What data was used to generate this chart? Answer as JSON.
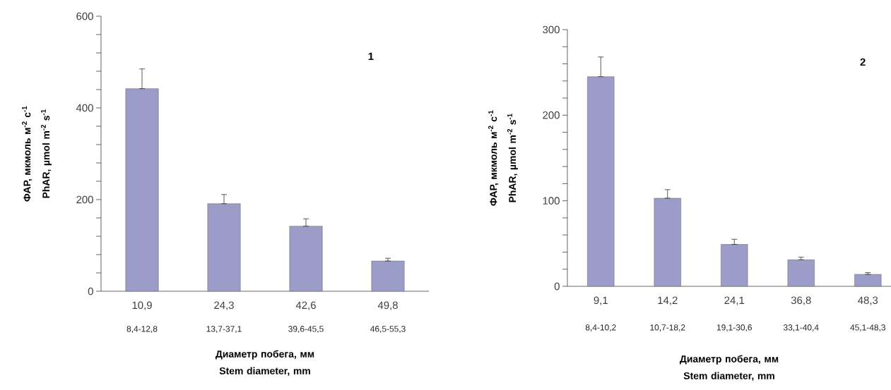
{
  "chart_data": [
    {
      "type": "bar",
      "title": "1",
      "categories": [
        "10,9",
        "24,3",
        "42,6",
        "49,8"
      ],
      "values": [
        442,
        191,
        142,
        66
      ],
      "errors": [
        [
          442,
          485
        ],
        [
          191,
          211
        ],
        [
          142,
          158
        ],
        [
          66,
          72
        ]
      ],
      "color": "#9c9cc8",
      "annotations": [
        "8,4-12,8",
        "13,7-37,1",
        "39,6-45,5",
        "46,5-55,3"
      ],
      "xlabel": "Диаметр побега, мм Stem diameter, mm",
      "ylabel": "ФАР, мкмоль м$^{-2}$ с$^{-1}$ PhAR, µmol m$^{-2}$ s$^{-1}$",
      "ylim": [
        0,
        600
      ],
      "yticks": [
        0,
        {
          "value": 40,
          "label": null
        },
        {
          "value": 80,
          "label": null
        },
        {
          "value": 120,
          "label": null
        },
        {
          "value": 160,
          "label": null
        },
        200,
        {
          "value": 240,
          "label": null
        },
        {
          "value": 280,
          "label": null
        },
        {
          "value": 320,
          "label": null
        },
        {
          "value": 360,
          "label": null
        },
        400,
        {
          "value": 440,
          "label": null
        },
        {
          "value": 480,
          "label": null
        },
        {
          "value": 520,
          "label": null
        },
        {
          "value": 560,
          "label": null
        },
        600
      ]
    },
    {
      "type": "bar",
      "title": "2",
      "categories": [
        "9,1",
        "14,2",
        "24,1",
        "36,8",
        "48,3"
      ],
      "values": [
        245,
        103,
        49,
        31,
        14
      ],
      "errors": [
        [
          245,
          268
        ],
        [
          103,
          113
        ],
        [
          49,
          55
        ],
        [
          31,
          34
        ],
        [
          14,
          16
        ]
      ],
      "color": "#9c9cc8",
      "annotations": [
        "8,4-10,2",
        "10,7-18,2",
        "19,1-30,6",
        "33,1-40,4",
        "45,1-48,3"
      ],
      "xlabel": "Диаметр побега, мм Stem diameter, mm",
      "ylabel": "ФАР, мкмоль м$^{-2}$ с$^{-1}$ PhAR, µmol m$^{-2}$ s$^{-1}$",
      "ylim": [
        0,
        300
      ],
      "yticks": [
        0,
        {
          "value": 20,
          "label": null
        },
        {
          "value": 40,
          "label": null
        },
        {
          "value": 60,
          "label": null
        },
        {
          "value": 80,
          "label": null
        },
        100,
        {
          "value": 120,
          "label": null
        },
        {
          "value": 140,
          "label": null
        },
        {
          "value": 160,
          "label": null
        },
        {
          "value": 180,
          "label": null
        },
        200,
        {
          "value": 220,
          "label": null
        },
        {
          "value": 240,
          "label": null
        },
        {
          "value": 260,
          "label": null
        },
        {
          "value": 280,
          "label": null
        },
        300
      ]
    }
  ]
}
